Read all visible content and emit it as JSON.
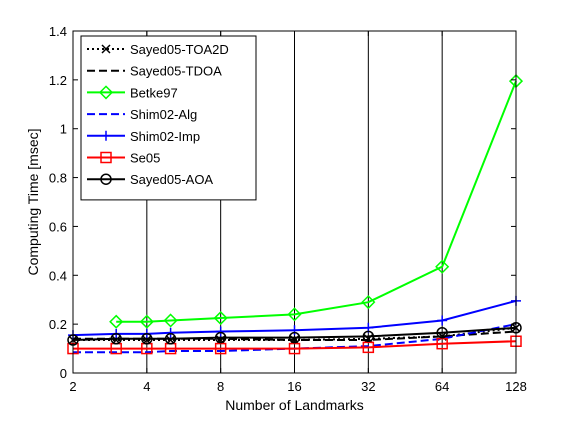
{
  "chart_data": {
    "type": "line",
    "title": "",
    "xlabel": "Number of Landmarks",
    "ylabel": "Computing Time [msec]",
    "x_scale": "log2",
    "xlim": [
      2,
      128
    ],
    "ylim": [
      0,
      1.4
    ],
    "x_ticks": [
      2,
      4,
      8,
      16,
      32,
      64,
      128
    ],
    "x_tick_labels": [
      "2",
      "4",
      "8",
      "16",
      "32",
      "64",
      "128"
    ],
    "y_ticks": [
      0,
      0.2,
      0.4,
      0.6,
      0.8,
      1,
      1.2,
      1.4
    ],
    "y_tick_labels": [
      "0",
      "0.2",
      "0.4",
      "0.6",
      "0.8",
      "1",
      "1.2",
      "1.4"
    ],
    "grid": "vertical lines at x ticks",
    "legend_position": "top-left",
    "series": [
      {
        "name": "Sayed05-TOA2D",
        "color": "#000000",
        "dash": "dotted",
        "marker": "x",
        "x": [
          2,
          3,
          4,
          5,
          8,
          16,
          32,
          64,
          128
        ],
        "values": [
          0.135,
          0.135,
          0.135,
          0.135,
          0.135,
          0.135,
          0.14,
          0.15,
          0.185
        ]
      },
      {
        "name": "Sayed05-TDOA",
        "color": "#000000",
        "dash": "dashed",
        "marker": "none",
        "x": [
          2,
          3,
          4,
          5,
          8,
          16,
          32,
          64,
          128
        ],
        "values": [
          0.14,
          0.14,
          0.14,
          0.14,
          0.14,
          0.135,
          0.135,
          0.15,
          0.17
        ]
      },
      {
        "name": "Betke97",
        "color": "#00ff00",
        "dash": "solid",
        "marker": "diamond",
        "x": [
          3,
          4,
          5,
          8,
          16,
          32,
          64,
          128
        ],
        "values": [
          0.21,
          0.21,
          0.215,
          0.225,
          0.24,
          0.29,
          0.435,
          1.195
        ]
      },
      {
        "name": "Shim02-Alg",
        "color": "#0000ff",
        "dash": "dashed",
        "marker": "none",
        "x": [
          2,
          3,
          4,
          5,
          8,
          16,
          32,
          64,
          128
        ],
        "values": [
          0.085,
          0.085,
          0.085,
          0.09,
          0.09,
          0.1,
          0.11,
          0.14,
          0.2
        ]
      },
      {
        "name": "Shim02-Imp",
        "color": "#0000ff",
        "dash": "solid",
        "marker": "plus",
        "x": [
          2,
          3,
          4,
          5,
          8,
          16,
          32,
          64,
          128
        ],
        "values": [
          0.155,
          0.16,
          0.16,
          0.165,
          0.17,
          0.175,
          0.185,
          0.215,
          0.295
        ]
      },
      {
        "name": "Se05",
        "color": "#ff0000",
        "dash": "solid",
        "marker": "square",
        "x": [
          2,
          3,
          4,
          5,
          8,
          16,
          32,
          64,
          128
        ],
        "values": [
          0.1,
          0.1,
          0.1,
          0.1,
          0.1,
          0.1,
          0.105,
          0.12,
          0.13
        ]
      },
      {
        "name": "Sayed05-AOA",
        "color": "#000000",
        "dash": "solid",
        "marker": "circle",
        "x": [
          2,
          3,
          4,
          5,
          8,
          16,
          32,
          64,
          128
        ],
        "values": [
          0.135,
          0.14,
          0.14,
          0.14,
          0.145,
          0.145,
          0.15,
          0.165,
          0.185
        ]
      }
    ]
  }
}
